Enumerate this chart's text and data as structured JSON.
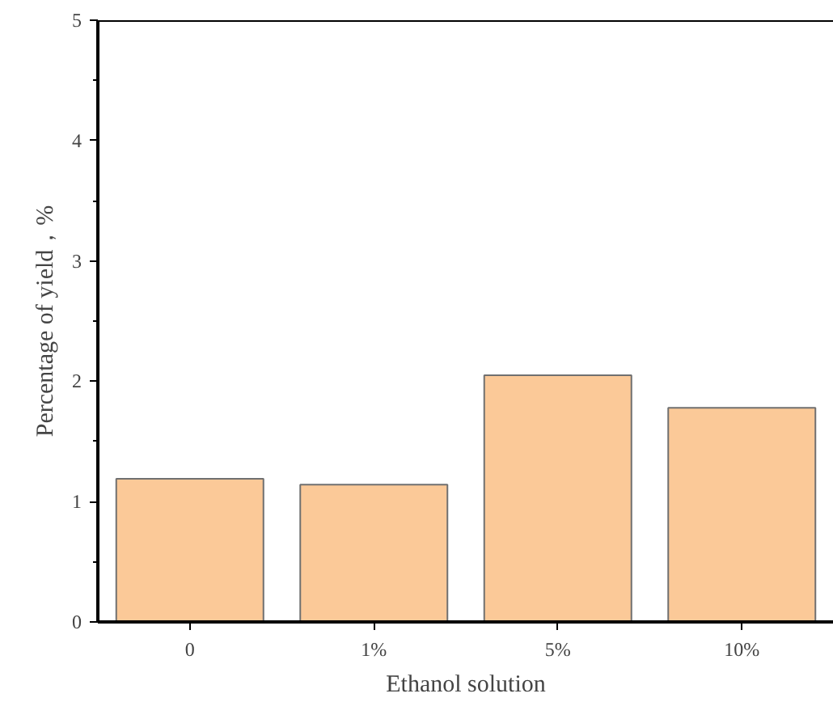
{
  "chart_data": {
    "type": "bar",
    "xlabel": "Ethanol solution",
    "ylabel": "Percentage of yield，%",
    "categories": [
      "0",
      "1%",
      "5%",
      "10%"
    ],
    "values": [
      1.19,
      1.14,
      2.05,
      1.78
    ],
    "color": "#fbc998",
    "ylim": [
      0,
      5
    ],
    "yticks": [
      0,
      1,
      2,
      3,
      4,
      5
    ],
    "grid": false
  }
}
